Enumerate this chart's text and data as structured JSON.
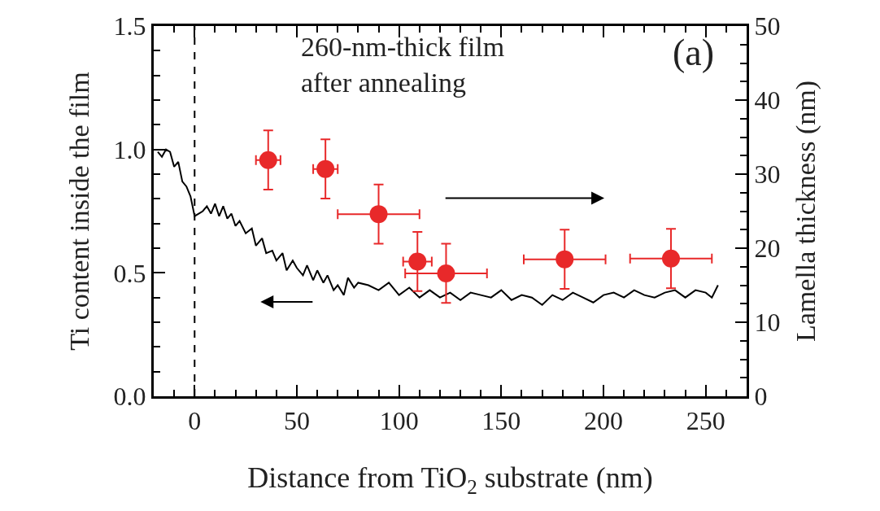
{
  "chart_data": {
    "type": "line",
    "xlabel": "Distance from TiO$_{2}$ substrate (nm)",
    "ylabel": "Ti content inside the film",
    "y2label": "Lamella thickness (nm)",
    "annotations": [
      "260-nm-thick film\nafter annealing",
      "(a)"
    ],
    "xlim": [
      -20,
      270
    ],
    "xticks": [
      0,
      50,
      100,
      150,
      200,
      250
    ],
    "ylim": [
      0,
      1.5
    ],
    "yticks": [
      {
        "value": 0,
        "label": "0.0"
      },
      0.5,
      {
        "value": 1,
        "label": "1.0"
      },
      1.5
    ],
    "y2lim": [
      0,
      50
    ],
    "y2ticks": [
      0,
      10,
      20,
      30,
      40,
      50
    ],
    "grid": false,
    "legend": false,
    "ref_lines": [
      {
        "axis": "x",
        "value": 0,
        "color": "#000000",
        "line_style": "dashed"
      }
    ],
    "series": [
      {
        "color": "#000000",
        "marker": "none",
        "line_style": "solid",
        "x": [
          -18,
          -16,
          -14,
          -12,
          -10,
          -8,
          -6,
          -4,
          -2,
          0,
          2,
          4,
          6,
          8,
          10,
          12,
          14,
          16,
          18,
          20,
          22,
          25,
          28,
          30,
          33,
          35,
          38,
          40,
          43,
          45,
          48,
          50,
          53,
          55,
          58,
          60,
          63,
          65,
          68,
          70,
          73,
          75,
          78,
          80,
          85,
          90,
          95,
          100,
          105,
          110,
          115,
          120,
          125,
          130,
          135,
          140,
          145,
          150,
          155,
          160,
          165,
          170,
          175,
          180,
          185,
          190,
          195,
          200,
          205,
          210,
          215,
          220,
          225,
          230,
          235,
          240,
          245,
          250,
          253,
          256
        ],
        "values": [
          0.99,
          0.97,
          1.0,
          0.99,
          0.93,
          0.95,
          0.87,
          0.85,
          0.81,
          0.73,
          0.74,
          0.75,
          0.77,
          0.74,
          0.78,
          0.73,
          0.77,
          0.72,
          0.74,
          0.69,
          0.71,
          0.66,
          0.68,
          0.61,
          0.64,
          0.58,
          0.59,
          0.55,
          0.58,
          0.51,
          0.55,
          0.52,
          0.49,
          0.53,
          0.47,
          0.51,
          0.46,
          0.49,
          0.43,
          0.45,
          0.41,
          0.48,
          0.44,
          0.46,
          0.45,
          0.43,
          0.46,
          0.41,
          0.44,
          0.4,
          0.43,
          0.4,
          0.42,
          0.39,
          0.42,
          0.41,
          0.4,
          0.43,
          0.39,
          0.41,
          0.4,
          0.37,
          0.41,
          0.39,
          0.42,
          0.4,
          0.38,
          0.41,
          0.42,
          0.4,
          0.43,
          0.41,
          0.4,
          0.42,
          0.43,
          0.4,
          0.43,
          0.42,
          0.4,
          0.45
        ]
      },
      {
        "type": "scatter",
        "axis": "y2",
        "color": "#e8292a",
        "marker": "circle",
        "x": [
          36,
          64,
          90,
          109,
          123,
          181,
          233
        ],
        "values": [
          31.9,
          30.7,
          24.6,
          18.2,
          16.6,
          18.5,
          18.6
        ],
        "errors": [
          4,
          4,
          4,
          4,
          4,
          4,
          4
        ],
        "xerrors": [
          6,
          6,
          20,
          7,
          20,
          20,
          20
        ]
      }
    ]
  }
}
